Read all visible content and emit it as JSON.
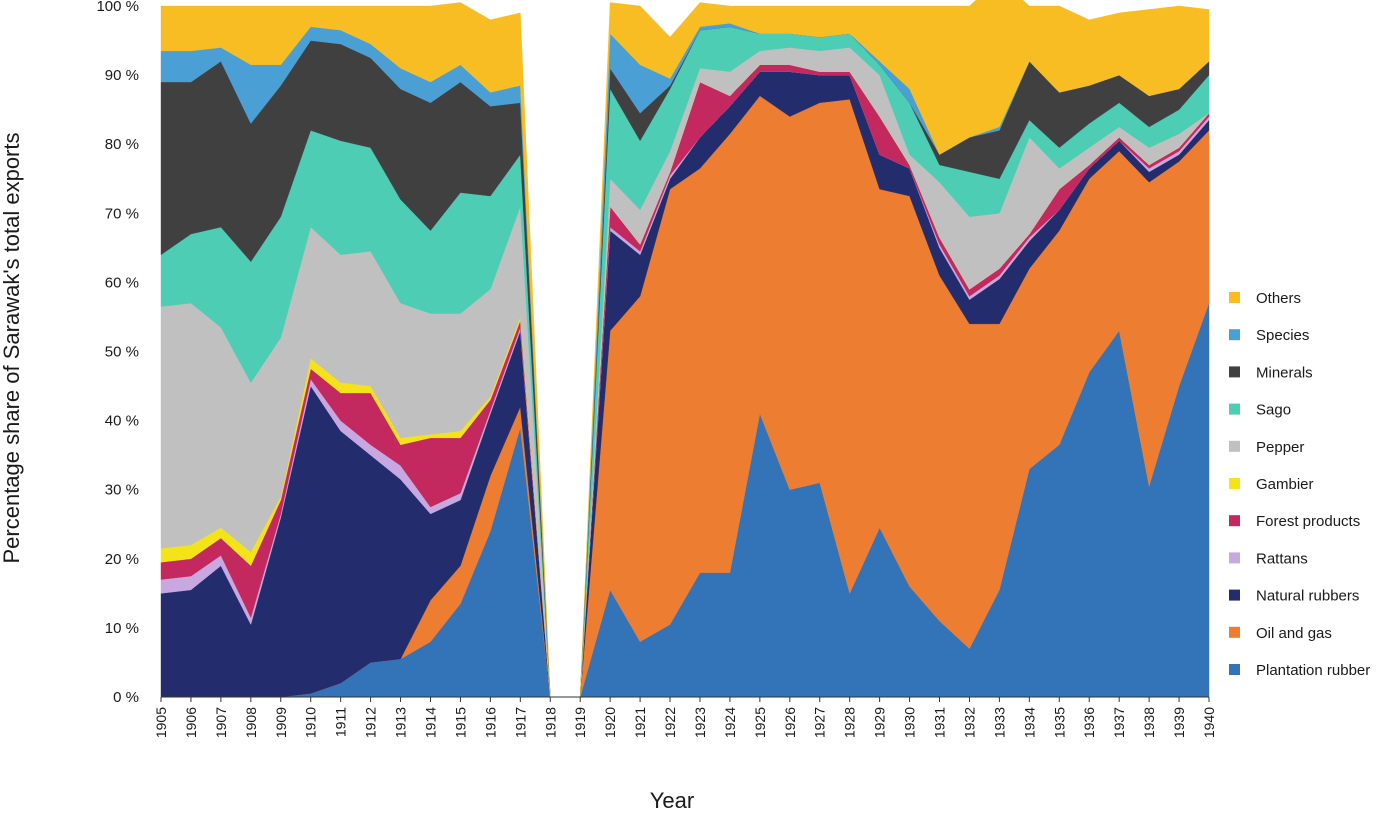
{
  "chart_data": {
    "type": "area",
    "stacked": true,
    "percent_stacked": true,
    "title": "",
    "xlabel": "Year",
    "ylabel": "Percentage share of Sarawak's total exports",
    "ylim": [
      0,
      100
    ],
    "y_ticks": [
      "0 %",
      "10 %",
      "20 %",
      "30 %",
      "40 %",
      "50 %",
      "60 %",
      "70 %",
      "80 %",
      "90 %",
      "100 %"
    ],
    "y_tick_values": [
      0,
      10,
      20,
      30,
      40,
      50,
      60,
      70,
      80,
      90,
      100
    ],
    "categories": [
      "1905",
      "1906",
      "1907",
      "1908",
      "1909",
      "1910",
      "1911",
      "1912",
      "1913",
      "1914",
      "1915",
      "1916",
      "1917",
      "1918",
      "1919",
      "1920",
      "1921",
      "1922",
      "1923",
      "1924",
      "1925",
      "1926",
      "1927",
      "1928",
      "1929",
      "1930",
      "1931",
      "1932",
      "1933",
      "1934",
      "1935",
      "1936",
      "1937",
      "1938",
      "1939",
      "1940"
    ],
    "grid": false,
    "legend_position": "right",
    "series": [
      {
        "name": "Plantation rubber",
        "color": "#3373B7",
        "values": [
          0,
          0,
          0,
          0,
          0,
          0.5,
          2,
          5,
          5.5,
          8,
          13.5,
          24,
          39,
          0,
          0,
          15.5,
          8,
          10.5,
          18,
          18,
          41,
          30,
          31,
          15,
          24.5,
          16,
          11,
          7,
          15.5,
          33,
          36.5,
          47,
          53,
          30.5,
          45,
          57
        ]
      },
      {
        "name": "Oil and gas",
        "color": "#ED7D31",
        "values": [
          0,
          0,
          0,
          0,
          0,
          0,
          0,
          0,
          0,
          6,
          5.5,
          8,
          3,
          0,
          0,
          37.5,
          50,
          63,
          58.5,
          63.5,
          46,
          54,
          55,
          71.5,
          49,
          56.5,
          50,
          47,
          38.5,
          29,
          31,
          28,
          26,
          44,
          32.5,
          25
        ]
      },
      {
        "name": "Natural rubbers",
        "color": "#232D6E",
        "values": [
          15,
          15.5,
          19,
          10.5,
          26,
          44.5,
          36.5,
          30,
          26,
          12.5,
          9.5,
          9,
          11,
          0,
          0,
          14.5,
          6,
          1.5,
          4.5,
          4,
          3.5,
          6.5,
          4,
          3.5,
          5,
          4,
          4,
          3.5,
          6.5,
          4,
          3,
          1.5,
          1.5,
          1.5,
          1,
          1.5
        ]
      },
      {
        "name": "Rattans",
        "color": "#C8A8E0",
        "values": [
          2,
          2,
          1.5,
          1,
          0.5,
          1,
          1.5,
          1.5,
          2,
          1,
          1,
          0.5,
          0.5,
          0,
          0,
          0.5,
          0.5,
          0.5,
          0,
          0,
          0,
          0,
          0,
          0,
          0,
          0,
          0.5,
          0.5,
          0.5,
          0.5,
          0,
          0,
          0,
          0.5,
          0.5,
          0.5
        ]
      },
      {
        "name": "Forest products",
        "color": "#C3285E",
        "values": [
          2.5,
          2.5,
          2.5,
          7.5,
          2,
          1.5,
          4,
          7.5,
          3,
          10,
          8,
          1.5,
          1,
          0,
          0,
          3,
          1,
          0.5,
          8,
          1.5,
          1,
          1,
          0.5,
          0.5,
          5.5,
          0.5,
          1,
          1,
          1,
          0.5,
          3,
          0.5,
          0.5,
          0.5,
          0.5,
          0.5
        ]
      },
      {
        "name": "Gambier",
        "color": "#F5E31A",
        "values": [
          2,
          2,
          1.5,
          2,
          0.5,
          1.5,
          1.5,
          1,
          1,
          0.5,
          1,
          0.5,
          0.5,
          0,
          0,
          0,
          0,
          0,
          0,
          0,
          0,
          0,
          0,
          0,
          0,
          0,
          0,
          0,
          0,
          0,
          0,
          0,
          0,
          0,
          0,
          0
        ]
      },
      {
        "name": "Pepper",
        "color": "#C0C0C0",
        "values": [
          35,
          35,
          29,
          24.5,
          23,
          19,
          18.5,
          19.5,
          19.5,
          17.5,
          17,
          15.5,
          16,
          0,
          0,
          4,
          5,
          3,
          2,
          3.5,
          2,
          2.5,
          3,
          3.5,
          6,
          1.5,
          8,
          10.5,
          8,
          14,
          3,
          2.5,
          1.5,
          2.5,
          2,
          0
        ]
      },
      {
        "name": "Sago",
        "color": "#4DCDB4",
        "values": [
          7.5,
          10,
          14.5,
          17.5,
          17.5,
          14,
          16.5,
          15,
          15,
          12,
          17.5,
          13.5,
          7.5,
          0,
          0,
          13,
          10,
          9,
          5.5,
          6.5,
          2.5,
          2,
          2,
          2,
          1.5,
          7.5,
          2.5,
          6.5,
          5,
          2.5,
          3,
          3.5,
          3.5,
          3,
          3.5,
          5.5
        ]
      },
      {
        "name": "Minerals",
        "color": "#404040",
        "values": [
          25,
          22,
          24,
          20,
          19,
          13,
          14,
          13,
          16,
          18.5,
          16,
          13,
          7.5,
          0,
          0,
          3,
          4,
          0.5,
          0,
          0,
          0,
          0,
          0,
          0,
          0,
          0,
          1.5,
          5,
          7,
          8.5,
          8,
          5.5,
          4,
          4.5,
          3,
          2
        ]
      },
      {
        "name": "Species",
        "color": "#4AA0D5",
        "values": [
          4.5,
          4.5,
          2,
          8.5,
          3,
          2,
          2,
          2,
          3,
          3,
          2.5,
          2,
          2.5,
          0,
          0,
          5,
          7,
          1,
          0.5,
          0.5,
          0,
          0,
          0,
          0,
          0.5,
          2,
          0,
          0,
          0.5,
          0,
          0,
          0,
          0,
          0,
          0,
          0
        ]
      },
      {
        "name": "Others",
        "color": "#F7BD23",
        "values": [
          6.5,
          6.5,
          6,
          8.5,
          8.5,
          3,
          3.5,
          5.5,
          9,
          11,
          9,
          10.5,
          10.5,
          0,
          0,
          4.5,
          8.5,
          6,
          3.5,
          2.5,
          4,
          4,
          4.5,
          4,
          8,
          12,
          21.5,
          19,
          21.5,
          8,
          12.5,
          9.5,
          9,
          12.5,
          12,
          7.5
        ]
      }
    ]
  }
}
